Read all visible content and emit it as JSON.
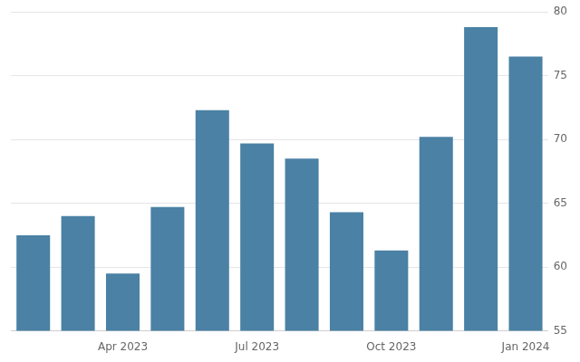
{
  "chart_data": {
    "type": "bar",
    "categories": [
      null,
      null,
      "Apr 2023",
      null,
      null,
      "Jul 2023",
      null,
      null,
      "Oct 2023",
      null,
      null,
      "Jan 2024"
    ],
    "values": [
      62.5,
      64.0,
      59.5,
      64.7,
      72.3,
      69.7,
      68.5,
      64.3,
      61.3,
      70.2,
      78.8,
      76.5
    ],
    "color": "#4a81a4",
    "ylim": [
      55,
      80
    ],
    "yticks": [
      55,
      60,
      65,
      70,
      75,
      80
    ],
    "grid": true
  }
}
